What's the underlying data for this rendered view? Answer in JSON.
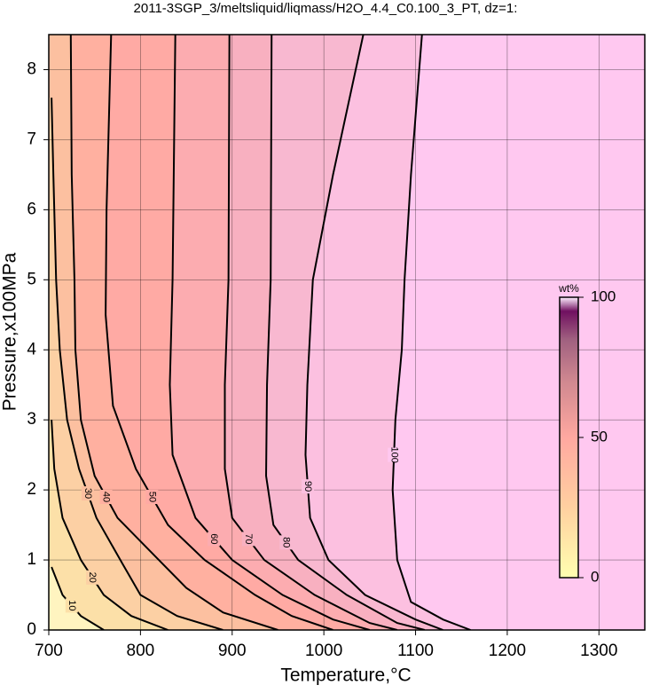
{
  "chart_data": {
    "type": "contour",
    "title": "2011-3SGP_3/meltsliquid/liqmass/H2O_4.4_C0.100_3_PT, dz=1:",
    "xlabel": "Temperature,°C",
    "ylabel": "Pressure,x100MPa",
    "xlim": [
      700,
      1350
    ],
    "ylim": [
      0,
      8.5
    ],
    "xticks": [
      700,
      800,
      900,
      1000,
      1100,
      1200,
      1300
    ],
    "yticks": [
      0,
      1,
      2,
      3,
      4,
      5,
      6,
      7,
      8
    ],
    "grid": true,
    "background": "#fff4c0",
    "contours": [
      {
        "level": 10,
        "fill": "#fce0a8",
        "x": [
          760,
          735,
          715,
          703
        ],
        "y": [
          0,
          0.2,
          0.5,
          0.9
        ]
      },
      {
        "level": 20,
        "fill": "#fcd0a4",
        "x": [
          830,
          790,
          760,
          735,
          715,
          706,
          703
        ],
        "y": [
          0,
          0.2,
          0.5,
          1,
          1.6,
          2.3,
          3
        ]
      },
      {
        "level": 30,
        "fill": "#fcc0a0",
        "x": [
          890,
          840,
          800,
          778,
          752,
          733,
          720,
          712,
          708,
          705,
          703
        ],
        "y": [
          0,
          0.2,
          0.5,
          1,
          1.6,
          2.3,
          3,
          4,
          5,
          6.5,
          7.6
        ]
      },
      {
        "level": 40,
        "fill": "#ffb0a0",
        "x": [
          950,
          890,
          850,
          820,
          775,
          750,
          735,
          729,
          728,
          725,
          724
        ],
        "y": [
          0,
          0.25,
          0.6,
          1,
          1.6,
          2.2,
          3,
          4,
          5,
          6.5,
          8.5
        ]
      },
      {
        "level": 50,
        "fill": "#ffaaa4",
        "x": [
          1010,
          965,
          925,
          870,
          830,
          795,
          770,
          762,
          763,
          768
        ],
        "y": [
          0,
          0.2,
          0.5,
          1,
          1.5,
          2.3,
          3.2,
          4.5,
          6,
          8.5
        ]
      },
      {
        "level": 60,
        "fill": "#fcacb0",
        "x": [
          1050,
          1010,
          955,
          900,
          860,
          835,
          832,
          835,
          838
        ],
        "y": [
          0,
          0.15,
          0.5,
          1,
          1.6,
          2.5,
          3.5,
          5,
          8.5
        ]
      },
      {
        "level": 70,
        "fill": "#f8b0c0",
        "x": [
          1080,
          1050,
          990,
          935,
          900,
          892,
          892,
          896,
          897
        ],
        "y": [
          0,
          0.1,
          0.5,
          1,
          1.6,
          2.3,
          3.5,
          5,
          8.5
        ]
      },
      {
        "level": 80,
        "fill": "#f8b8d0",
        "x": [
          1110,
          1080,
          1025,
          972,
          945,
          937,
          938,
          942,
          943
        ],
        "y": [
          0,
          0.1,
          0.5,
          1,
          1.5,
          2.2,
          3.5,
          5,
          8.5
        ]
      },
      {
        "level": 90,
        "fill": "#fcc0e0",
        "x": [
          1130,
          1100,
          1045,
          1005,
          985,
          980,
          982,
          988,
          1010,
          1043
        ],
        "y": [
          0,
          0.15,
          0.5,
          1,
          1.6,
          2.5,
          3.5,
          5,
          6.5,
          8.5
        ]
      },
      {
        "level": 100,
        "fill": "#ffc8f0",
        "x": [
          1160,
          1130,
          1095,
          1080,
          1075,
          1078,
          1085,
          1088,
          1095,
          1107
        ],
        "y": [
          0,
          0.15,
          0.4,
          1,
          2,
          3,
          4,
          5,
          6.5,
          8.5
        ]
      }
    ],
    "colorbar": {
      "label": "wt%",
      "lim": [
        0,
        100
      ],
      "ticks": [
        0,
        50,
        100
      ],
      "stops": [
        {
          "value": 0,
          "color": "#ffffb0"
        },
        {
          "value": 25,
          "color": "#ffd0a0"
        },
        {
          "value": 50,
          "color": "#ffa8a0"
        },
        {
          "value": 70,
          "color": "#d08890"
        },
        {
          "value": 85,
          "color": "#a06080"
        },
        {
          "value": 95,
          "color": "#701060"
        },
        {
          "value": 100,
          "color": "#fff0ff"
        }
      ]
    }
  }
}
